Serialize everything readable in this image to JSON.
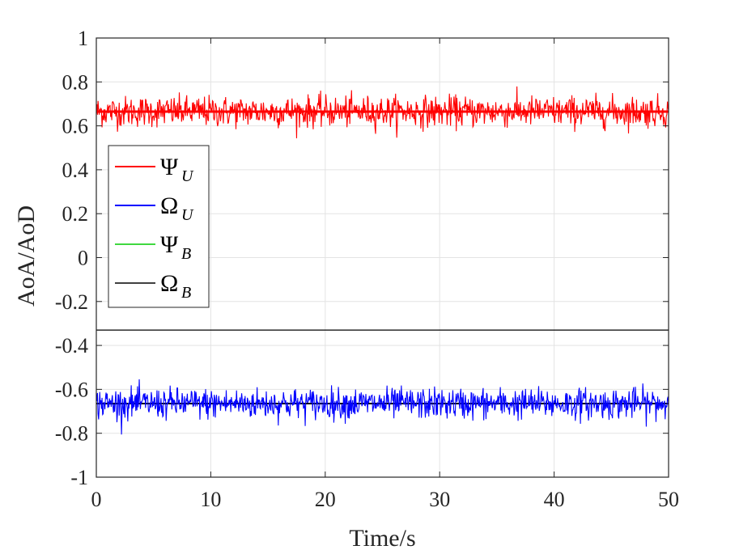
{
  "chart_data": {
    "type": "line",
    "xlabel": "Time/s",
    "ylabel": "AoA/AoD",
    "xlim": [
      0,
      50
    ],
    "ylim": [
      -1,
      1
    ],
    "xticks": [
      0,
      10,
      20,
      30,
      40,
      50
    ],
    "yticks": [
      -1,
      -0.8,
      -0.6,
      -0.4,
      -0.2,
      0,
      0.2,
      0.4,
      0.6,
      0.8,
      1
    ],
    "xtick_labels": [
      "0",
      "10",
      "20",
      "30",
      "40",
      "50"
    ],
    "ytick_labels": [
      "-1",
      "-0.8",
      "-0.6",
      "-0.4",
      "-0.2",
      "0",
      "0.2",
      "0.4",
      "0.6",
      "0.8",
      "1"
    ],
    "grid": true,
    "legend_placement": "center-left",
    "separator_y": -0.33,
    "series": [
      {
        "name": "Ψ",
        "subscript": "U",
        "color": "#ff0000",
        "mean": 0.665,
        "noise_std": 0.035,
        "noisy": true
      },
      {
        "name": "Ω",
        "subscript": "U",
        "color": "#0000ff",
        "mean": -0.665,
        "noise_std": 0.035,
        "noisy": true
      },
      {
        "name": "Ψ",
        "subscript": "B",
        "color": "#00cc00",
        "mean": 0.665,
        "noise_std": 0.0,
        "noisy": false
      },
      {
        "name": "Ω",
        "subscript": "B",
        "color": "#000000",
        "mean": -0.665,
        "noise_std": 0.0,
        "noisy": false
      }
    ],
    "samples": 1000
  }
}
